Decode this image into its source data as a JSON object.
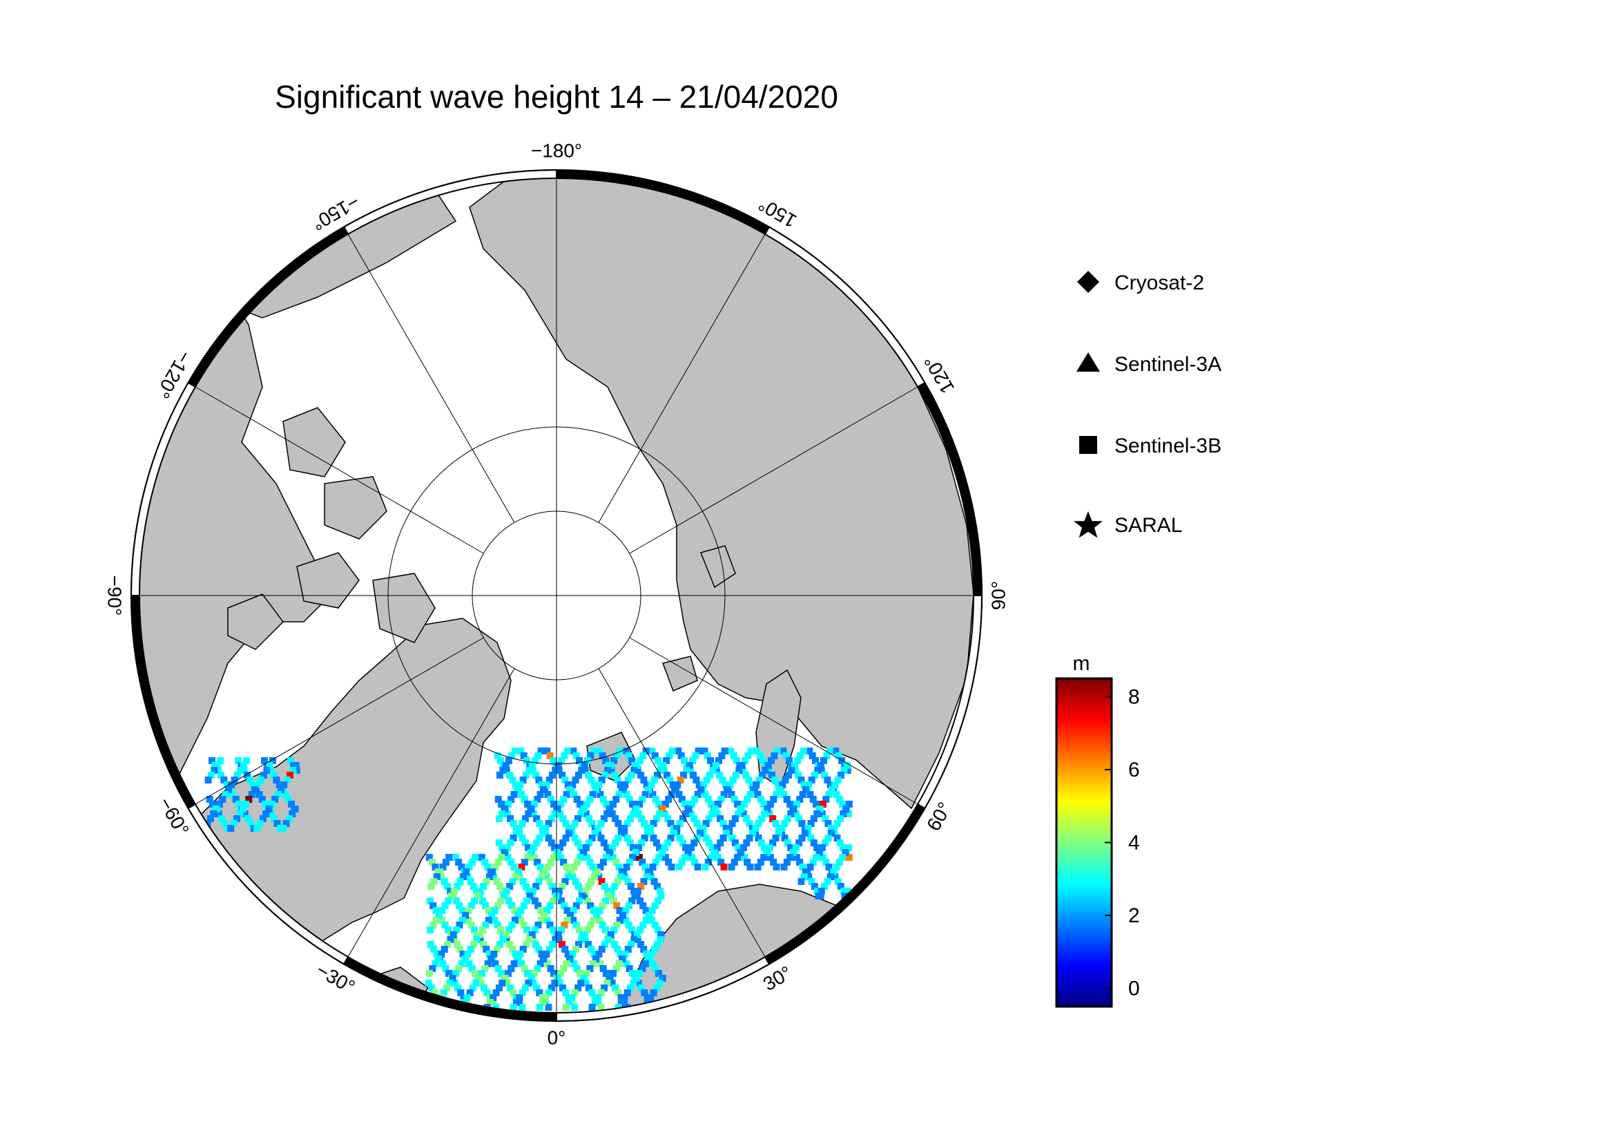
{
  "title": "Significant wave height 14 – 21/04/2020",
  "map": {
    "projection": "north polar stereographic",
    "longitude_labels": [
      {
        "lon": 0,
        "text": "0°"
      },
      {
        "lon": 30,
        "text": "30°"
      },
      {
        "lon": 60,
        "text": "60°"
      },
      {
        "lon": 90,
        "text": "90°"
      },
      {
        "lon": 120,
        "text": "120°"
      },
      {
        "lon": 150,
        "text": "150°"
      },
      {
        "lon": -180,
        "text": "−180°"
      },
      {
        "lon": -150,
        "text": "−150°"
      },
      {
        "lon": -120,
        "text": "−120°"
      },
      {
        "lon": -90,
        "text": "−90°"
      },
      {
        "lon": -60,
        "text": "−60°"
      },
      {
        "lon": -30,
        "text": "−30°"
      }
    ],
    "colors": {
      "land": "#c0c0c0",
      "ocean": "#ffffff",
      "grid": "#000000"
    }
  },
  "legend": {
    "items": [
      {
        "symbol": "diamond",
        "label": "Cryosat-2"
      },
      {
        "symbol": "triangle",
        "label": "Sentinel-3A"
      },
      {
        "symbol": "square",
        "label": "Sentinel-3B"
      },
      {
        "symbol": "star",
        "label": "SARAL"
      }
    ]
  },
  "colorbar": {
    "unit": "m",
    "range": [
      -0.5,
      8.5
    ],
    "ticks": [
      {
        "value": 0,
        "text": "0"
      },
      {
        "value": 2,
        "text": "2"
      },
      {
        "value": 4,
        "text": "4"
      },
      {
        "value": 6,
        "text": "6"
      },
      {
        "value": 8,
        "text": "8"
      }
    ],
    "colormap": [
      "#00007f",
      "#0000ff",
      "#007fff",
      "#00ffff",
      "#7fff7f",
      "#ffff00",
      "#ff7f00",
      "#ff0000",
      "#7f0000"
    ]
  }
}
